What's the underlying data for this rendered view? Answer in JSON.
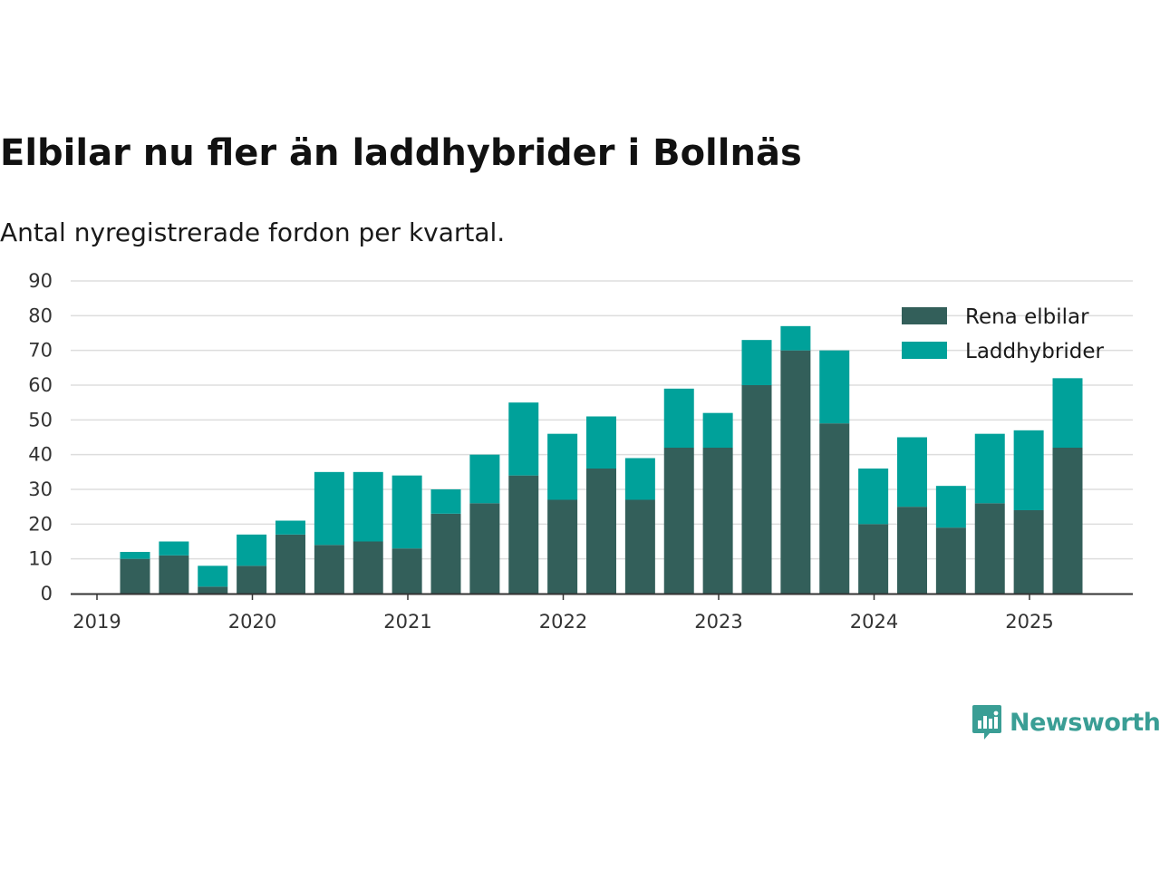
{
  "title": "Elbilar nu fler än laddhybrider i Bollnäs",
  "subtitle": "Antal nyregistrerade fordon per kvartal.",
  "brand": {
    "name": "Newsworthy",
    "icon": "newsworthy-logo-icon",
    "color": "#3a9e95"
  },
  "colors": {
    "rena_elbilar": "#335f5a",
    "laddhybrider": "#00a19a",
    "grid": "#dddddd",
    "axis": "#333333"
  },
  "chart_data": {
    "type": "bar",
    "stacked": true,
    "title": "Elbilar nu fler än laddhybrider i Bollnäs",
    "subtitle": "Antal nyregistrerade fordon per kvartal.",
    "xlabel": "",
    "ylabel": "",
    "ylim": [
      0,
      90
    ],
    "yticks": [
      0,
      10,
      20,
      30,
      40,
      50,
      60,
      70,
      80,
      90
    ],
    "xticks": [
      "2019",
      "2020",
      "2021",
      "2022",
      "2023",
      "2024",
      "2025"
    ],
    "categories": [
      "2019-Q2",
      "2019-Q3",
      "2019-Q4",
      "2020-Q1",
      "2020-Q2",
      "2020-Q3",
      "2020-Q4",
      "2021-Q1",
      "2021-Q2",
      "2021-Q3",
      "2021-Q4",
      "2022-Q1",
      "2022-Q2",
      "2022-Q3",
      "2022-Q4",
      "2023-Q1",
      "2023-Q2",
      "2023-Q3",
      "2023-Q4",
      "2024-Q1",
      "2024-Q2",
      "2024-Q3",
      "2024-Q4",
      "2025-Q1",
      "2025-Q2"
    ],
    "series": [
      {
        "name": "Rena elbilar",
        "color": "#335f5a",
        "values": [
          10,
          11,
          2,
          8,
          17,
          14,
          15,
          13,
          23,
          26,
          34,
          27,
          36,
          27,
          42,
          42,
          60,
          70,
          49,
          20,
          25,
          19,
          26,
          24,
          42
        ]
      },
      {
        "name": "Laddhybrider",
        "color": "#00a19a",
        "values": [
          2,
          4,
          6,
          9,
          4,
          21,
          20,
          21,
          7,
          14,
          21,
          19,
          15,
          12,
          17,
          10,
          13,
          7,
          21,
          16,
          20,
          12,
          20,
          23,
          20
        ]
      }
    ],
    "grid": true,
    "legend": "top-right"
  }
}
